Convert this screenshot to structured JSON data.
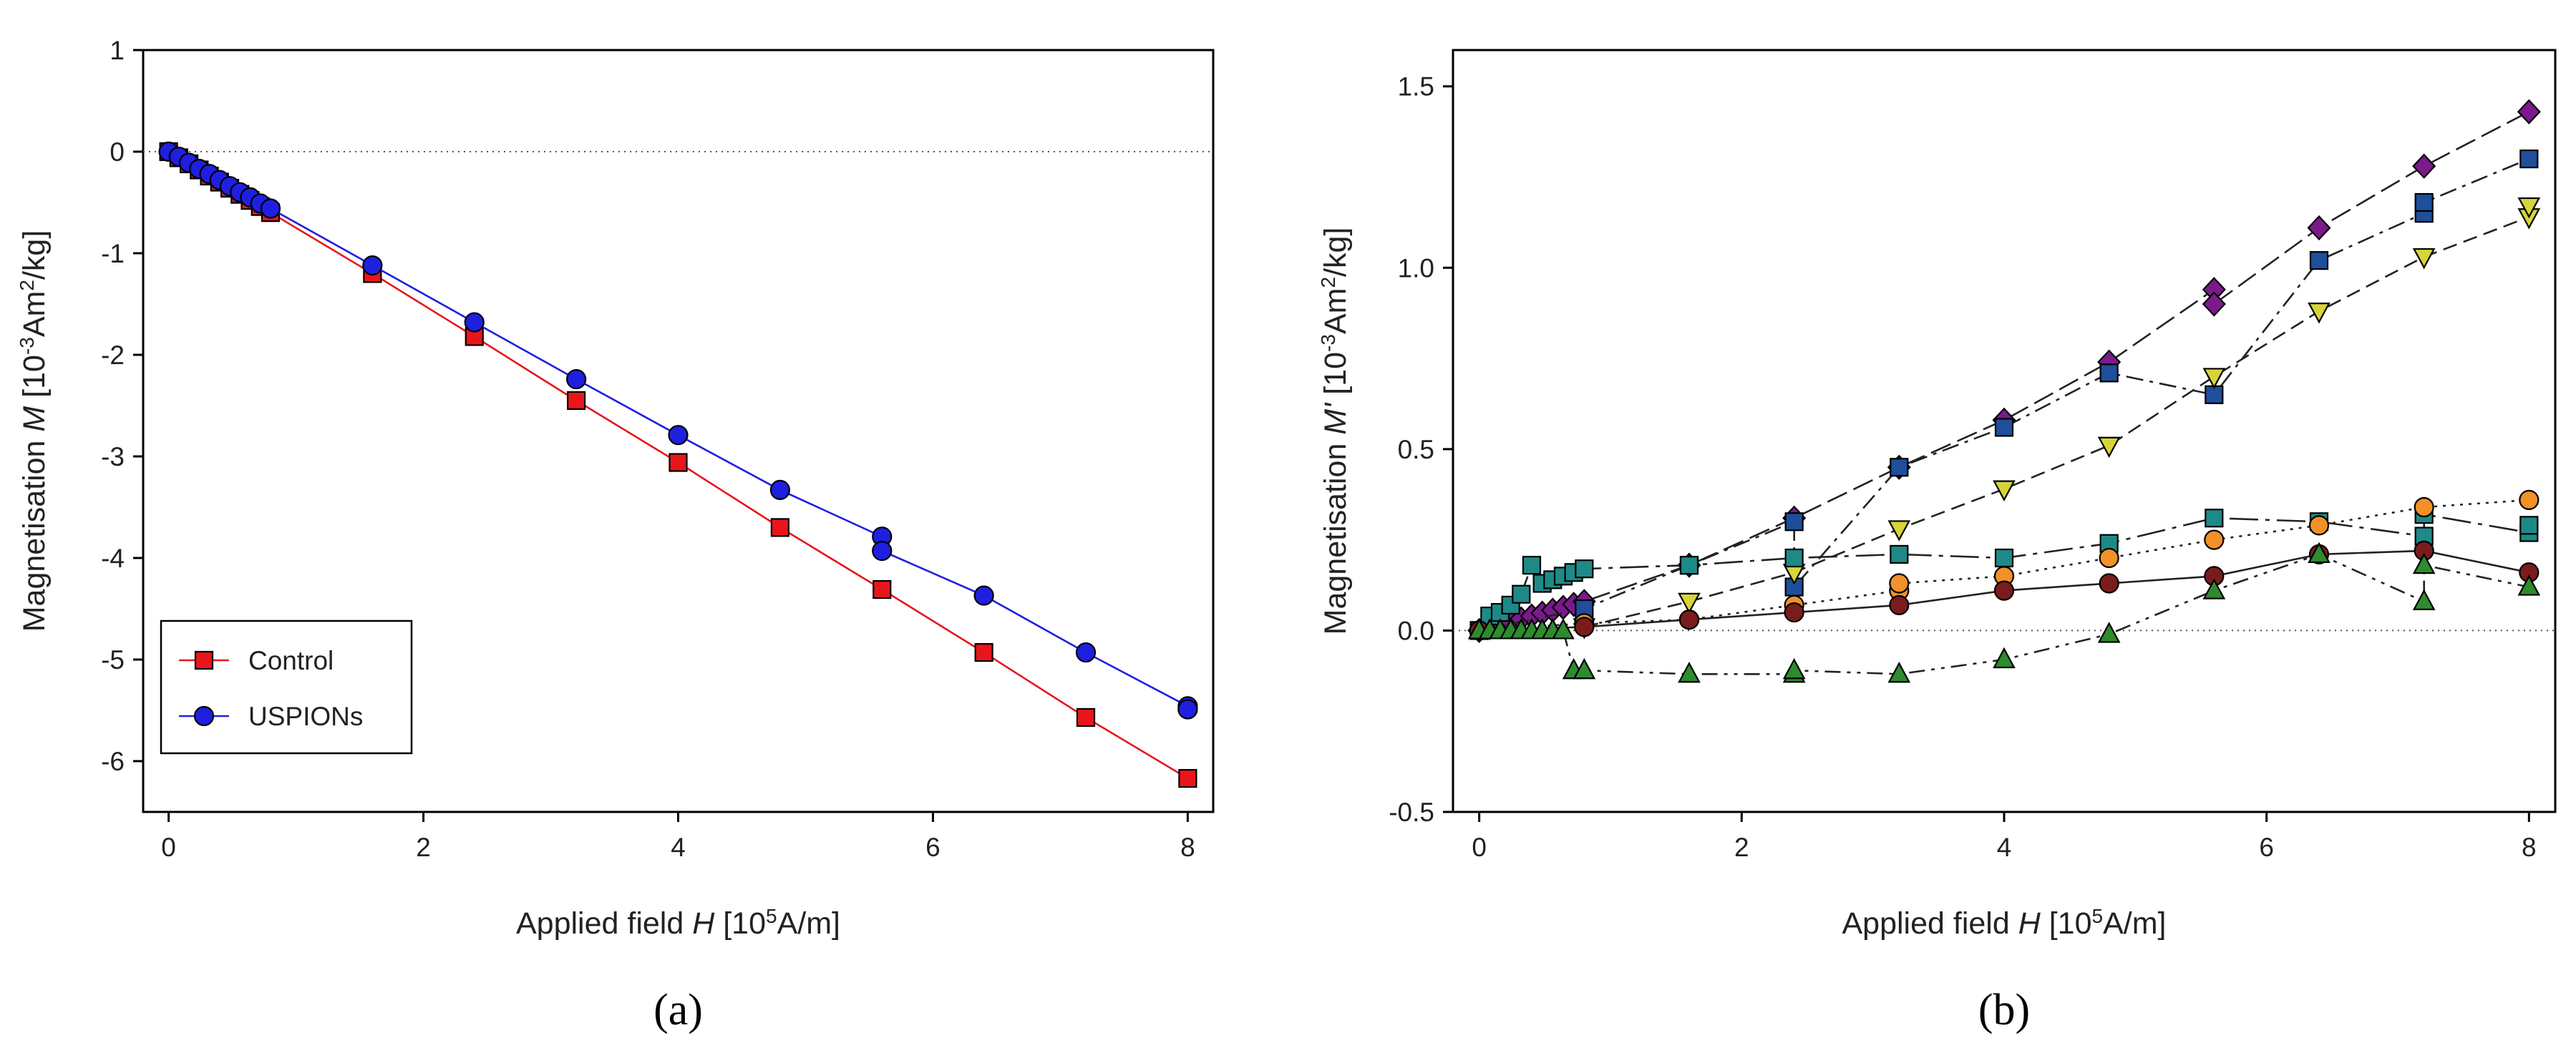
{
  "chart_data": [
    {
      "type": "line",
      "panel_label": "(a)",
      "xlabel_parts": [
        "Applied field ",
        "H",
        " [10",
        "5",
        "A/m]"
      ],
      "ylabel_parts": [
        "Magnetisation ",
        "M",
        " [10",
        "-3",
        "Am",
        "2",
        "/kg]"
      ],
      "xlim": [
        -0.2,
        8.2
      ],
      "ylim": [
        -6.5,
        1
      ],
      "xticks": [
        0,
        2,
        4,
        6,
        8
      ],
      "yticks": [
        1,
        0,
        -1,
        -2,
        -3,
        -4,
        -5,
        -6
      ],
      "zero_line": true,
      "legend": {
        "placement": "bottom-left"
      },
      "series": [
        {
          "name": "Control",
          "marker": "square",
          "color": "#e8161b",
          "marker_fill": "#e8161b",
          "line_dash": "",
          "x": [
            0,
            0.08,
            0.16,
            0.24,
            0.32,
            0.4,
            0.48,
            0.56,
            0.64,
            0.72,
            0.8,
            1.6,
            2.4,
            3.2,
            4.0,
            4.8,
            5.6,
            6.4,
            7.2,
            8.0
          ],
          "y": [
            0,
            -0.06,
            -0.12,
            -0.18,
            -0.24,
            -0.3,
            -0.36,
            -0.42,
            -0.48,
            -0.54,
            -0.6,
            -1.2,
            -1.82,
            -2.45,
            -3.06,
            -3.7,
            -4.31,
            -4.93,
            -5.57,
            -6.17
          ]
        },
        {
          "name": "USPIONs",
          "marker": "circle",
          "color": "#1f1fe0",
          "marker_fill": "#1f1fe0",
          "line_dash": "",
          "x": [
            0,
            0.08,
            0.16,
            0.24,
            0.32,
            0.4,
            0.48,
            0.56,
            0.64,
            0.72,
            0.8,
            1.6,
            2.4,
            3.2,
            4.0,
            4.8,
            5.6,
            5.6,
            6.4,
            7.2,
            8.0,
            8.0
          ],
          "y": [
            0,
            -0.05,
            -0.11,
            -0.17,
            -0.22,
            -0.28,
            -0.34,
            -0.4,
            -0.45,
            -0.51,
            -0.56,
            -1.12,
            -1.68,
            -2.24,
            -2.79,
            -3.33,
            -3.79,
            -3.93,
            -4.37,
            -4.93,
            -5.46,
            -5.49
          ]
        }
      ]
    },
    {
      "type": "line",
      "panel_label": "(b)",
      "xlabel_parts": [
        "Applied field ",
        "H",
        " [10",
        "5",
        "A/m]"
      ],
      "ylabel_parts": [
        "Magnetisation ",
        "M'",
        " [10",
        "-3",
        "Am",
        "2",
        "/kg]"
      ],
      "xlim": [
        -0.2,
        8.2
      ],
      "ylim": [
        -0.5,
        1.6
      ],
      "xticks": [
        0,
        2,
        4,
        6,
        8
      ],
      "yticks": [
        "1.5",
        "1.0",
        "0.5",
        "0.0",
        "-0.5"
      ],
      "zero_line": true,
      "series": [
        {
          "marker": "diamond",
          "marker_fill": "#7a1a8c",
          "color": "#222222",
          "line_dash": "30,10",
          "x": [
            0,
            0.08,
            0.16,
            0.24,
            0.32,
            0.4,
            0.48,
            0.56,
            0.64,
            0.72,
            0.8,
            1.6,
            2.4,
            3.2,
            4.0,
            4.8,
            5.6,
            5.6,
            6.4,
            7.2,
            8.0
          ],
          "y": [
            0,
            0.008,
            0.016,
            0.024,
            0.032,
            0.04,
            0.048,
            0.056,
            0.064,
            0.072,
            0.08,
            0.18,
            0.31,
            0.45,
            0.58,
            0.74,
            0.94,
            0.9,
            1.11,
            1.28,
            1.43
          ]
        },
        {
          "marker": "square",
          "marker_fill": "#1f4e9b",
          "color": "#222222",
          "line_dash": "24,9,5,9",
          "x": [
            0,
            0.8,
            1.6,
            2.4,
            2.4,
            3.2,
            4.0,
            4.8,
            5.6,
            6.4,
            7.2,
            7.2,
            8.0
          ],
          "y": [
            0,
            0.06,
            0.18,
            0.3,
            0.12,
            0.45,
            0.56,
            0.71,
            0.65,
            1.02,
            1.15,
            1.18,
            1.3
          ]
        },
        {
          "marker": "triangle-down",
          "marker_fill": "#d7d43a",
          "color": "#222222",
          "line_dash": "20,10",
          "x": [
            0.8,
            1.6,
            2.4,
            3.2,
            4.0,
            4.8,
            5.6,
            6.4,
            7.2,
            8.0,
            8.0
          ],
          "y": [
            0.01,
            0.08,
            0.16,
            0.28,
            0.39,
            0.51,
            0.7,
            0.88,
            1.03,
            1.14,
            1.17
          ]
        },
        {
          "marker": "square",
          "marker_fill": "#1e8a87",
          "color": "#222222",
          "line_dash": "40,10,6,10",
          "x": [
            0,
            0.08,
            0.16,
            0.24,
            0.32,
            0.4,
            0.48,
            0.56,
            0.64,
            0.72,
            0.8,
            1.6,
            2.4,
            3.2,
            4.0,
            4.8,
            5.6,
            6.4,
            7.2,
            7.2,
            8.0,
            8.0
          ],
          "y": [
            0,
            0.04,
            0.05,
            0.07,
            0.1,
            0.18,
            0.13,
            0.14,
            0.15,
            0.16,
            0.17,
            0.18,
            0.2,
            0.21,
            0.2,
            0.24,
            0.31,
            0.3,
            0.26,
            0.32,
            0.27,
            0.29
          ]
        },
        {
          "marker": "circle",
          "marker_fill": "#f0912a",
          "color": "#222222",
          "line_dash": "4,8",
          "x": [
            0,
            0.8,
            1.6,
            2.4,
            3.2,
            3.2,
            4.0,
            4.8,
            5.6,
            6.4,
            7.2,
            8.0
          ],
          "y": [
            0,
            0.02,
            0.03,
            0.07,
            0.11,
            0.13,
            0.15,
            0.2,
            0.25,
            0.29,
            0.34,
            0.36
          ]
        },
        {
          "marker": "circle",
          "marker_fill": "#7a1c1c",
          "color": "#222222",
          "line_dash": "",
          "x": [
            0,
            0.8,
            1.6,
            2.4,
            3.2,
            4.0,
            4.8,
            5.6,
            6.4,
            7.2,
            8.0
          ],
          "y": [
            0,
            0.01,
            0.03,
            0.05,
            0.07,
            0.11,
            0.13,
            0.15,
            0.21,
            0.22,
            0.16
          ]
        },
        {
          "marker": "triangle-up",
          "marker_fill": "#2e8b2e",
          "color": "#222222",
          "line_dash": "22,9,5,9,5,9",
          "x": [
            0,
            0.08,
            0.16,
            0.24,
            0.32,
            0.4,
            0.48,
            0.56,
            0.64,
            0.72,
            0.8,
            1.6,
            2.4,
            2.4,
            3.2,
            4.0,
            4.8,
            5.6,
            6.4,
            7.2,
            7.2,
            8.0
          ],
          "y": [
            0,
            0,
            0,
            0,
            0,
            0,
            0,
            0,
            0,
            -0.11,
            -0.11,
            -0.12,
            -0.12,
            -0.11,
            -0.12,
            -0.08,
            -0.01,
            0.11,
            0.21,
            0.08,
            0.18,
            0.12
          ]
        }
      ]
    }
  ]
}
